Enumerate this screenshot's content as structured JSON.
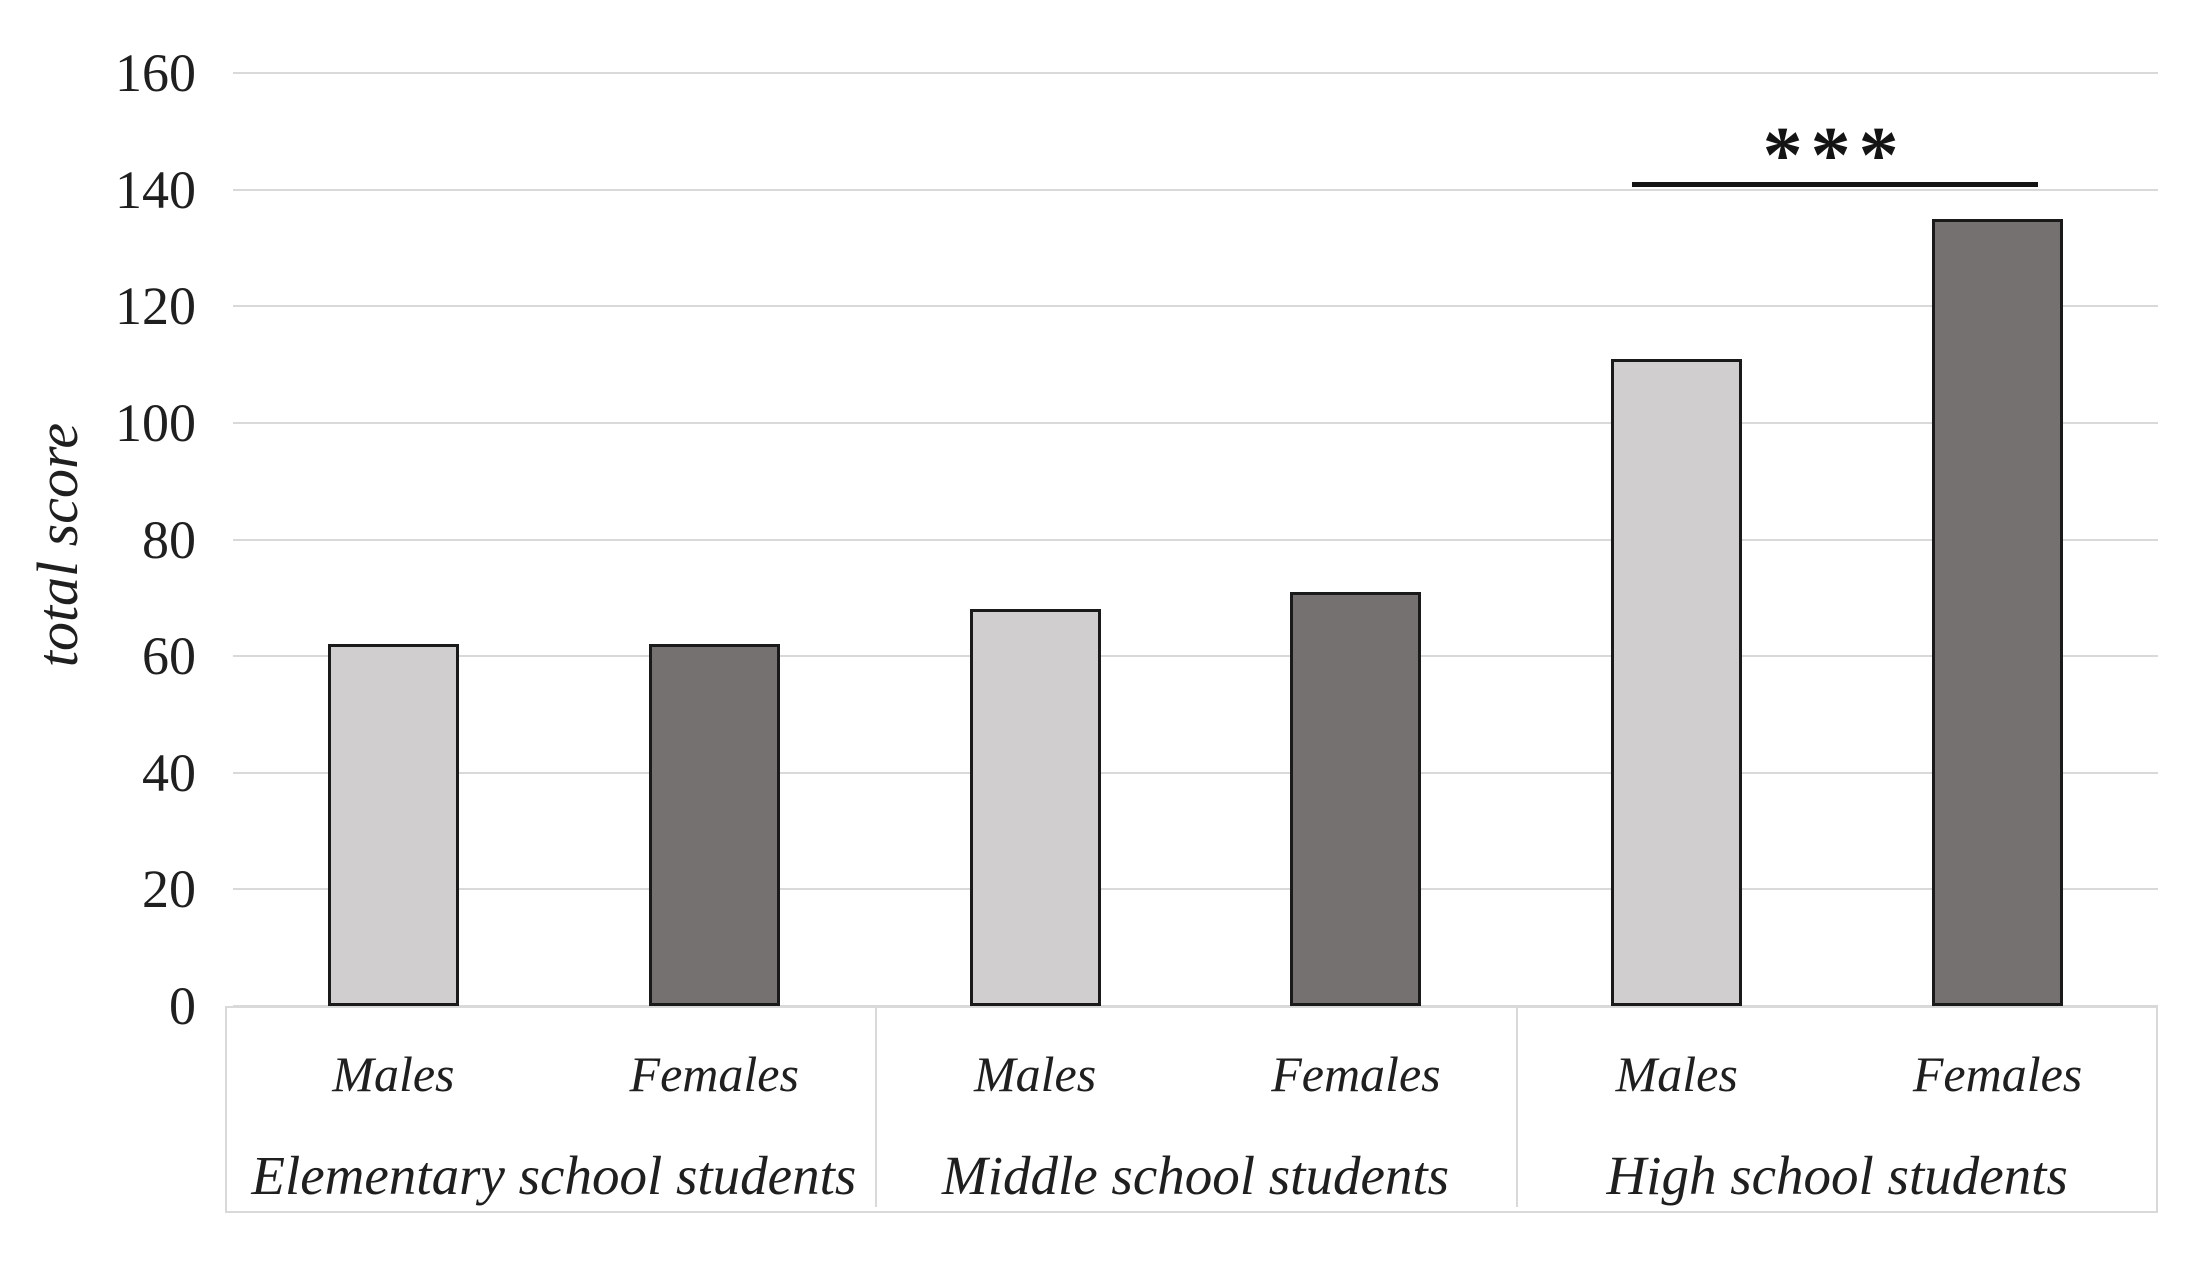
{
  "chart_data": {
    "type": "bar",
    "title": "",
    "ylabel": "total score",
    "xlabel": "",
    "ylim": [
      0,
      160
    ],
    "yticks": [
      0,
      20,
      40,
      60,
      80,
      100,
      120,
      140,
      160
    ],
    "grid": "horizontal",
    "legend_position": "none",
    "categories": [
      "Elementary school students",
      "Middle school students",
      "High school students"
    ],
    "series": [
      {
        "name": "Males",
        "fill": "#d0cece",
        "values": [
          62,
          68,
          111
        ]
      },
      {
        "name": "Females",
        "fill": "#767171",
        "values": [
          62,
          71,
          135
        ]
      }
    ],
    "annotations": [
      {
        "text": "***",
        "category": "High school students",
        "compares": [
          "Males",
          "Females"
        ],
        "line_y": 141
      }
    ]
  },
  "style": {
    "background": "#ffffff",
    "gridline_color": "#d9d9d9",
    "bar_border_color": "#1a1a1a",
    "box_border_color": "#d9d9d9",
    "text_color": "#1f1f1f",
    "annotation_color": "#141414"
  }
}
